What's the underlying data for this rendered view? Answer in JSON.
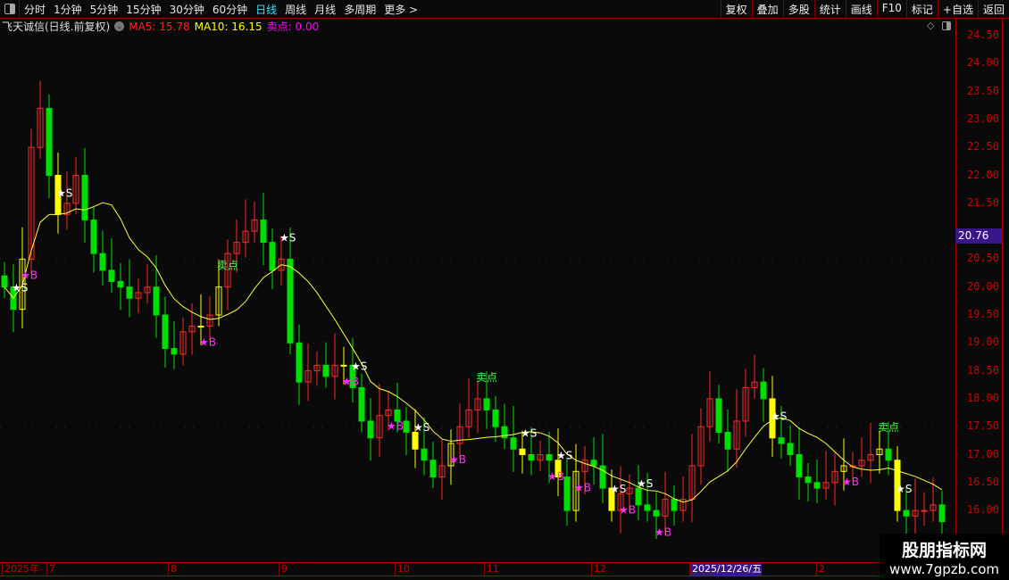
{
  "toolbar": {
    "periods": [
      "分时",
      "1分钟",
      "5分钟",
      "15分钟",
      "30分钟",
      "60分钟",
      "日线",
      "周线",
      "月线",
      "多周期",
      "更多 >"
    ],
    "active": "日线",
    "tools": [
      "复权",
      "叠加",
      "多股",
      "统计",
      "画线",
      "F10",
      "标记",
      "+自选",
      "返回"
    ]
  },
  "info": {
    "title": "飞天诚信(日线.前复权)",
    "ma5": "MA5: 15.78",
    "ma10": "MA10: 16.15",
    "sell": "卖点: 0.00",
    "ma5_color": "#ff2020",
    "ma10_color": "#ffff00",
    "sell_color": "#ff00ff"
  },
  "price_axis": {
    "labels": [
      "24.50",
      "24.00",
      "23.50",
      "23.00",
      "22.50",
      "22.00",
      "21.50",
      "20.50",
      "20.00",
      "19.50",
      "19.00",
      "18.50",
      "18.00",
      "17.50",
      "17.00",
      "16.50",
      "16.00"
    ],
    "current": "20.76"
  },
  "xaxis": {
    "labels": [
      {
        "t": "2025年",
        "i": 0
      },
      {
        "t": "7",
        "i": 5
      },
      {
        "t": "8",
        "i": 18.6
      },
      {
        "t": "9",
        "i": 31
      },
      {
        "t": "10",
        "i": 44
      },
      {
        "t": "11",
        "i": 54
      },
      {
        "t": "12",
        "i": 66
      },
      {
        "t": "2025/12/26/五",
        "i": 77,
        "hl": true
      },
      {
        "t": "2",
        "i": 91.2
      }
    ]
  },
  "chart_data": {
    "type": "candlestick",
    "ylim": [
      15.5,
      24.8
    ],
    "up_color": "#ff2a2a",
    "down_color": "#00e000",
    "signal_color": "#ffff00",
    "ma_color": "#ffff40",
    "close": [
      20.0,
      19.6,
      20.5,
      22.5,
      23.2,
      22.0,
      21.3,
      21.5,
      22.0,
      21.2,
      20.6,
      20.3,
      20.1,
      20.0,
      19.8,
      19.9,
      20.0,
      19.5,
      18.9,
      18.8,
      19.2,
      19.3,
      19.3,
      19.5,
      20.0,
      20.6,
      20.8,
      21.0,
      21.2,
      20.8,
      20.3,
      20.5,
      19.0,
      18.3,
      18.5,
      18.6,
      18.4,
      18.6,
      18.6,
      18.2,
      17.6,
      17.3,
      17.7,
      17.8,
      17.6,
      17.4,
      17.1,
      16.9,
      16.6,
      16.8,
      17.2,
      17.5,
      17.8,
      18.0,
      17.8,
      17.5,
      17.3,
      17.1,
      17.0,
      16.9,
      17.0,
      16.9,
      16.6,
      16.0,
      16.7,
      16.9,
      16.8,
      16.4,
      16.0,
      16.3,
      16.4,
      16.1,
      16.0,
      15.9,
      16.2,
      16.0,
      16.2,
      16.8,
      17.5,
      18.0,
      17.4,
      17.1,
      17.6,
      18.2,
      18.3,
      18.0,
      17.3,
      17.2,
      17.0,
      16.6,
      16.5,
      16.4,
      16.5,
      16.7,
      16.8,
      16.8,
      16.9,
      17.0,
      17.1,
      16.9,
      16.0,
      15.9,
      16.0,
      16.0,
      16.1,
      15.8
    ],
    "signals": [
      {
        "i": 1,
        "t": "★S",
        "c": "#ffffff",
        "up": true
      },
      {
        "i": 2,
        "t": "★B",
        "c": "#ff30ff"
      },
      {
        "i": 6,
        "t": "★S",
        "c": "#ffffff",
        "up": true
      },
      {
        "i": 22,
        "t": "★B",
        "c": "#ff30ff"
      },
      {
        "i": 24,
        "t": "卖点",
        "c": "#40ff40",
        "up": true
      },
      {
        "i": 31,
        "t": "★S",
        "c": "#ffffff",
        "up": true
      },
      {
        "i": 39,
        "t": "★S",
        "c": "#ffffff",
        "up": true
      },
      {
        "i": 38,
        "t": "★B",
        "c": "#ff30ff"
      },
      {
        "i": 43,
        "t": "★B",
        "c": "#ff30ff"
      },
      {
        "i": 46,
        "t": "★S",
        "c": "#ffffff",
        "up": true
      },
      {
        "i": 50,
        "t": "★B",
        "c": "#ff30ff"
      },
      {
        "i": 53,
        "t": "卖点",
        "c": "#40ff40",
        "up": true
      },
      {
        "i": 58,
        "t": "★S",
        "c": "#ffffff",
        "up": true
      },
      {
        "i": 62,
        "t": "★S",
        "c": "#ffffff",
        "up": true
      },
      {
        "i": 61,
        "t": "★B",
        "c": "#ff30ff"
      },
      {
        "i": 64,
        "t": "★B",
        "c": "#ff30ff"
      },
      {
        "i": 68,
        "t": "★S",
        "c": "#ffffff",
        "up": true
      },
      {
        "i": 71,
        "t": "★S",
        "c": "#ffffff",
        "up": true
      },
      {
        "i": 69,
        "t": "★B",
        "c": "#ff30ff"
      },
      {
        "i": 73,
        "t": "★B",
        "c": "#ff30ff"
      },
      {
        "i": 86,
        "t": "★S",
        "c": "#ffffff",
        "up": true
      },
      {
        "i": 94,
        "t": "★B",
        "c": "#ff30ff"
      },
      {
        "i": 98,
        "t": "卖点",
        "c": "#40ff40",
        "up": true
      },
      {
        "i": 100,
        "t": "★S",
        "c": "#ffffff",
        "up": true
      }
    ]
  },
  "watermark": {
    "line1": "股朋指标网",
    "line2": "www.7gpzb.com"
  }
}
